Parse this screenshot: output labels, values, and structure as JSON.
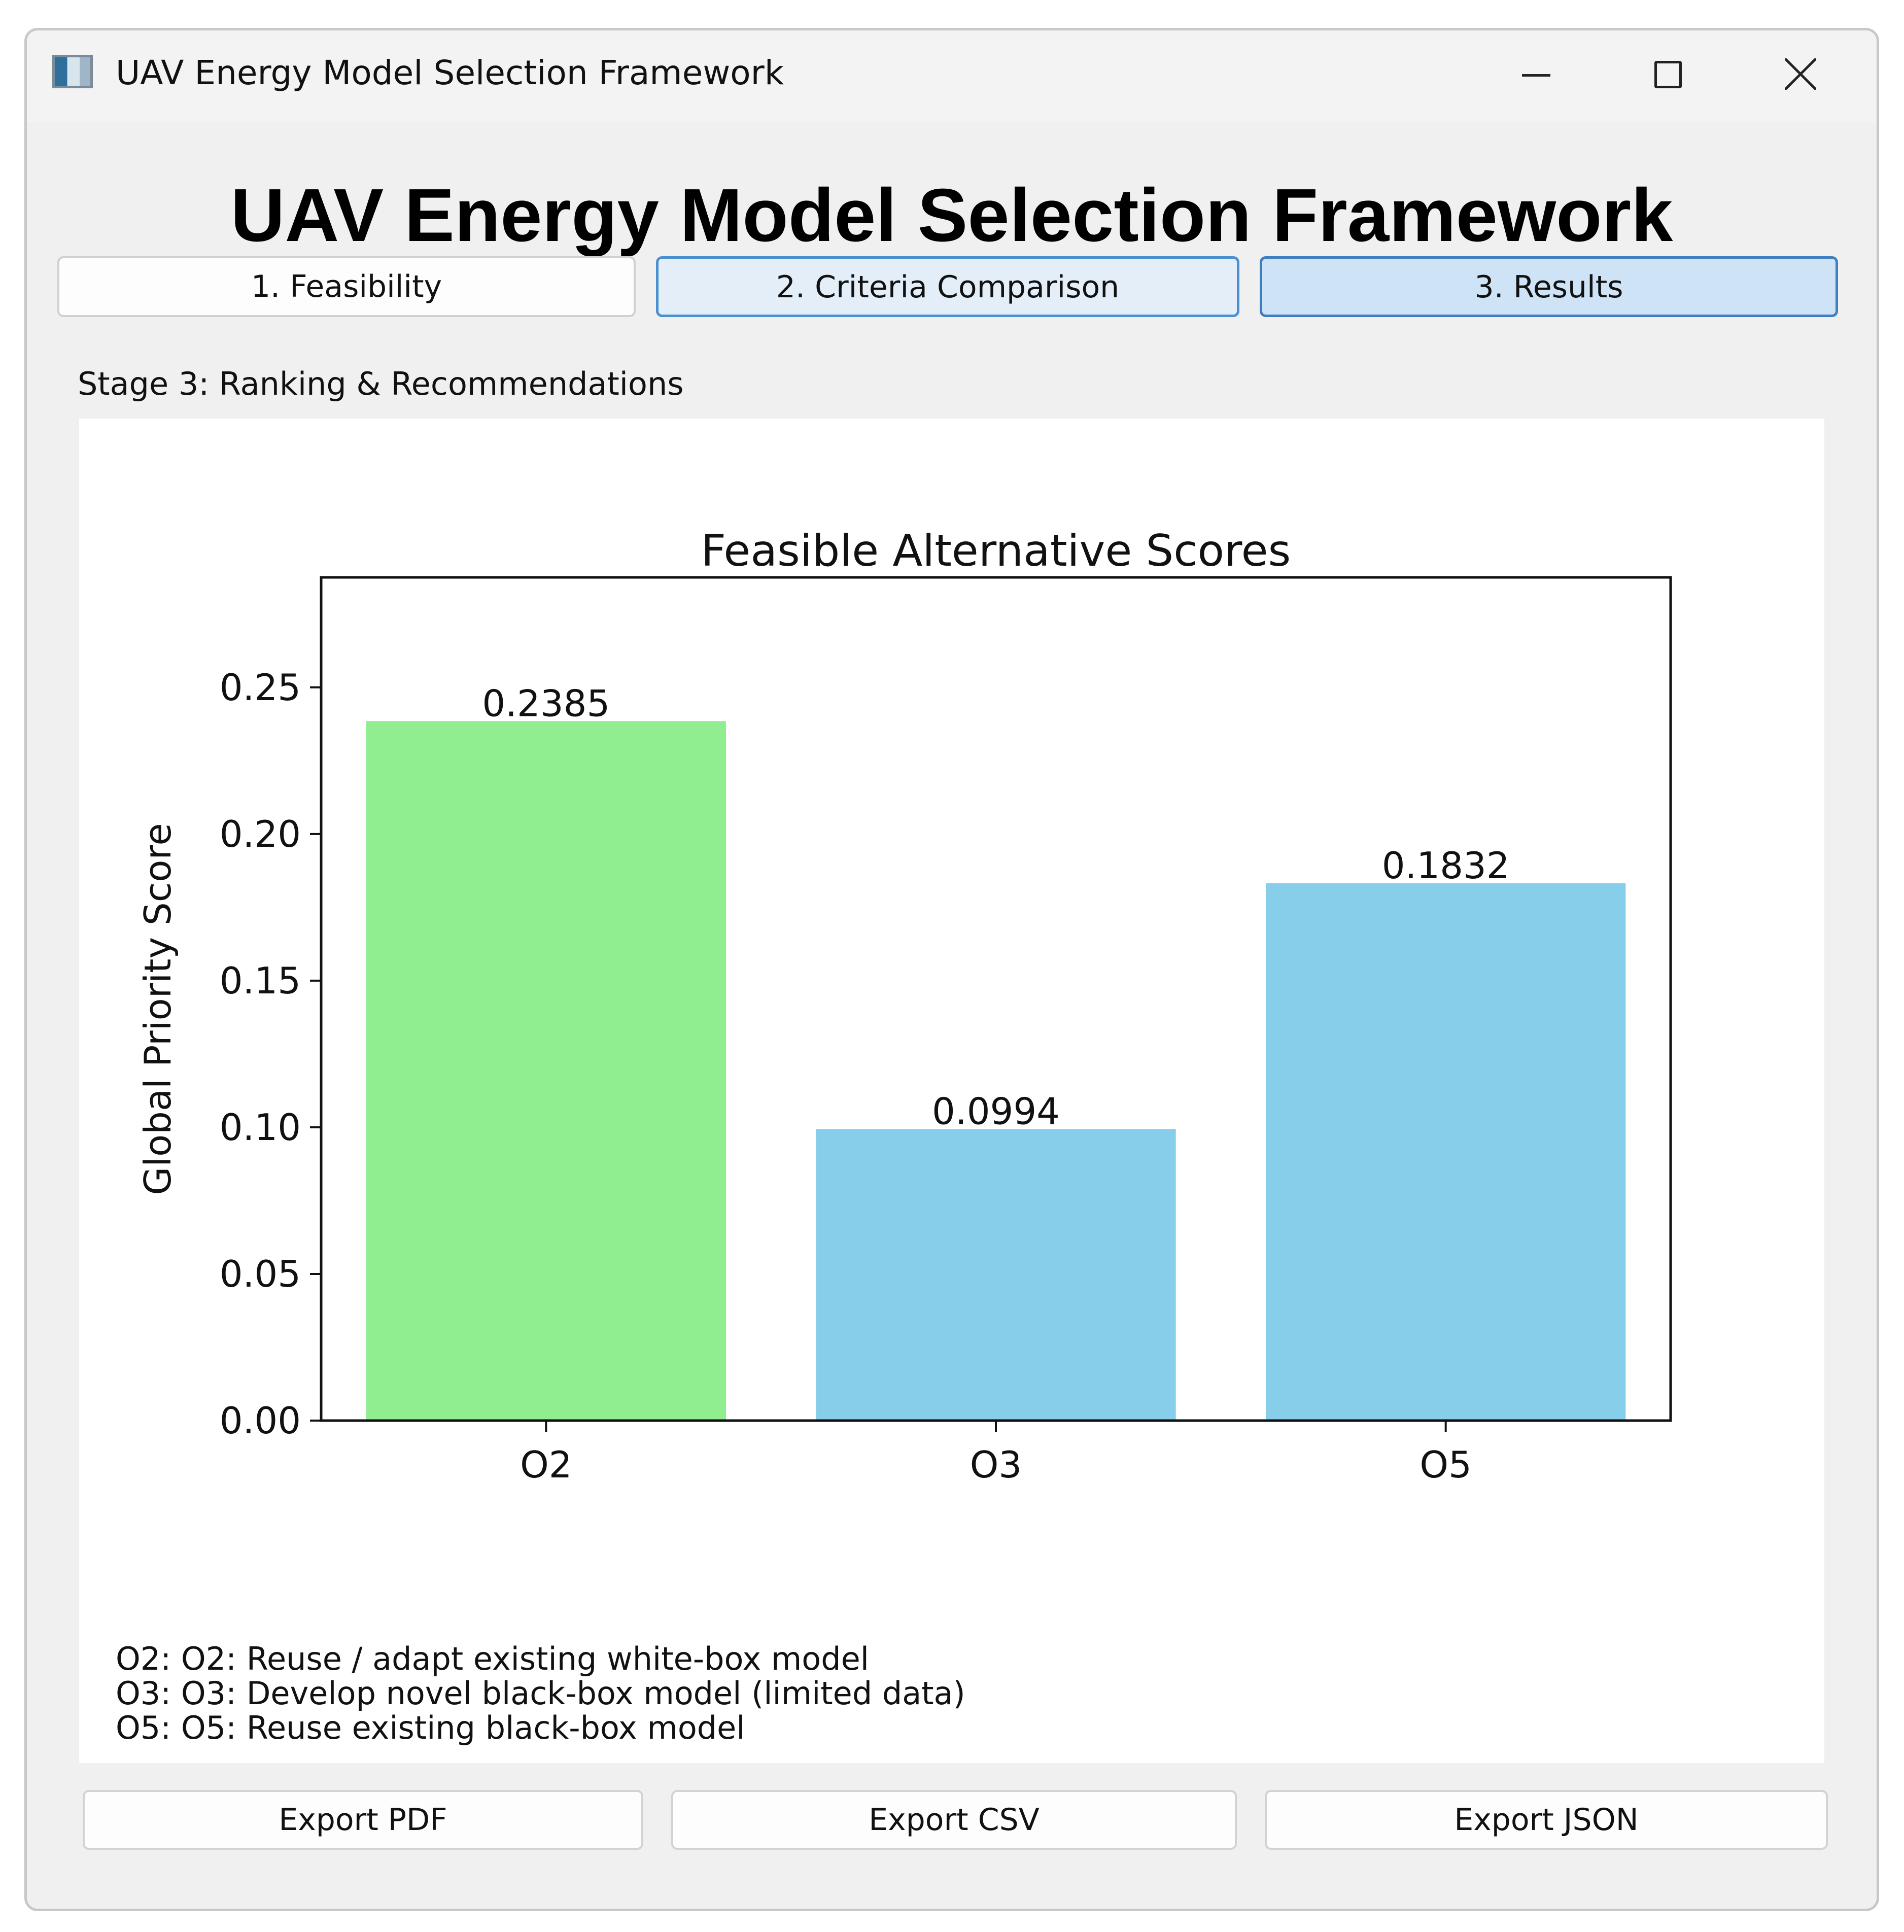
{
  "window": {
    "title": "UAV Energy Model Selection Framework",
    "icons": {
      "app": "app-window-icon",
      "minimize": "minimize-icon",
      "maximize": "maximize-icon",
      "close": "close-icon"
    }
  },
  "header": {
    "title": "UAV Energy Model Selection Framework"
  },
  "tabs": [
    {
      "label": "1. Feasibility",
      "state": "normal"
    },
    {
      "label": "2. Criteria Comparison",
      "state": "hover"
    },
    {
      "label": "3. Results",
      "state": "selected"
    }
  ],
  "stage": {
    "label": "Stage 3: Ranking & Recommendations"
  },
  "chart_data": {
    "type": "bar",
    "title": "Feasible Alternative Scores",
    "xlabel": "",
    "ylabel": "Global Priority Score",
    "categories": [
      "O2",
      "O3",
      "O5"
    ],
    "values": [
      0.2385,
      0.0994,
      0.1832
    ],
    "value_labels": [
      "0.2385",
      "0.0994",
      "0.1832"
    ],
    "bar_colors": [
      "#90ee90",
      "#87ceeb",
      "#87ceeb"
    ],
    "ylim": [
      0,
      0.2875
    ],
    "yticks": [
      0.0,
      0.05,
      0.1,
      0.15,
      0.2,
      0.25
    ],
    "ytick_labels": [
      "0.00",
      "0.05",
      "0.10",
      "0.15",
      "0.20",
      "0.25"
    ],
    "grid": false,
    "annotations": [
      "O2: O2: Reuse / adapt existing white-box model",
      "O3: O3: Develop novel black-box model (limited data)",
      "O5: O5: Reuse existing black-box model"
    ]
  },
  "actions": {
    "export_pdf": "Export PDF",
    "export_csv": "Export CSV",
    "export_json": "Export JSON"
  },
  "colors": {
    "window_bg": "#f0f0f0",
    "tab_selected_border": "#3d7fc0",
    "tab_selected_bg": "#cfe3f6",
    "tab_hover_bg": "#e3eef9"
  }
}
